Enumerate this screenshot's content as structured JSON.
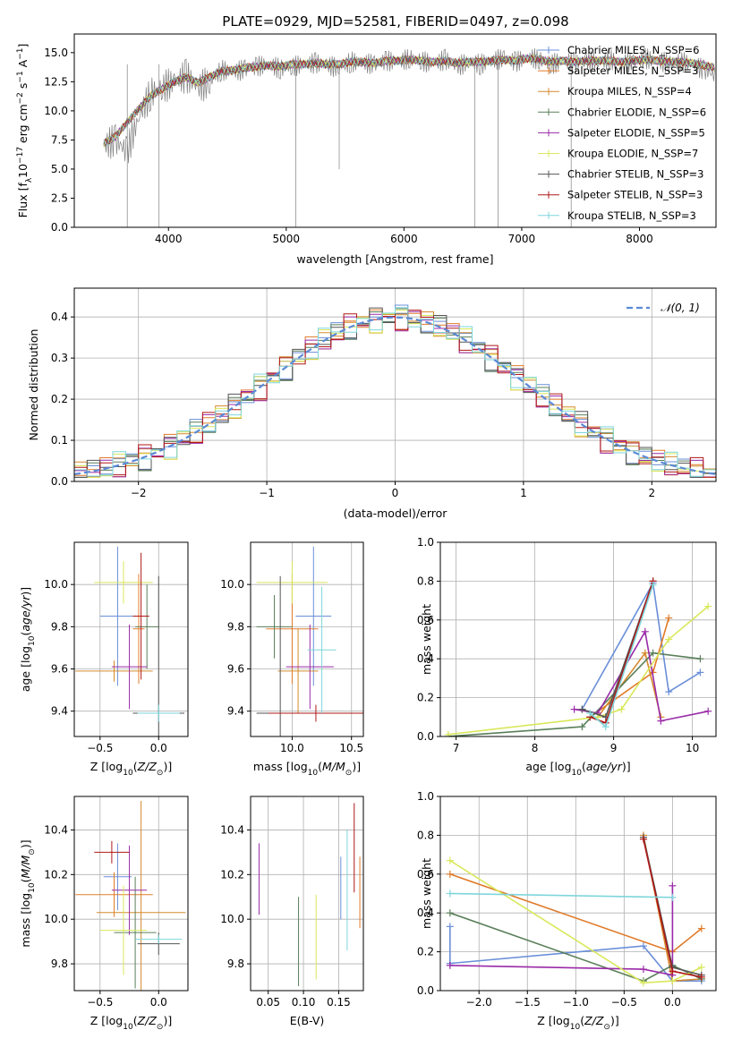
{
  "figure_title": "PLATE=0929, MJD=52581, FIBERID=0497, z=0.098",
  "series_colors": [
    "#6a8fd8",
    "#e07b2a",
    "#d48a2c",
    "#5a7f5a",
    "#9a2aa8",
    "#d9e85a",
    "#555555",
    "#b01818",
    "#7ed6dc"
  ],
  "chart_data": [
    {
      "id": "spectrum",
      "type": "line",
      "title": "PLATE=0929, MJD=52581, FIBERID=0497, z=0.098",
      "xlabel": "wavelength [Angstrom, rest frame]",
      "ylabel": "Flux [f_λ 10^-17 erg cm^-2 s^-1 A^-1]",
      "xlim": [
        3200,
        8650
      ],
      "ylim": [
        0,
        16.6
      ],
      "xticks": [
        4000,
        5000,
        6000,
        7000,
        8000
      ],
      "yticks": [
        0.0,
        2.5,
        5.0,
        7.5,
        10.0,
        12.5,
        15.0
      ],
      "grid": false,
      "legend_position": "right",
      "legend": [
        "Chabrier MILES, N_SSP=6",
        "Salpeter MILES, N_SSP=3",
        "Kroupa MILES, N_SSP=4",
        "Chabrier ELODIE, N_SSP=6",
        "Salpeter ELODIE, N_SSP=5",
        "Kroupa ELODIE, N_SSP=7",
        "Chabrier STELIB, N_SSP=3",
        "Salpeter STELIB, N_SSP=3",
        "Kroupa STELIB, N_SSP=3"
      ],
      "data_series": {
        "name": "data",
        "color": "#808080",
        "x": [
          3450,
          3550,
          3650,
          3750,
          3850,
          3950,
          4050,
          4150,
          4250,
          4350,
          4450,
          4550,
          4650,
          4750,
          4850,
          4950,
          5050,
          5150,
          5250,
          5350,
          5450,
          5550,
          5650,
          5750,
          5850,
          5950,
          6050,
          6150,
          6250,
          6350,
          6450,
          6550,
          6650,
          6750,
          6850,
          6950,
          7050,
          7150,
          7250,
          7350,
          7450,
          7550,
          7650,
          7750,
          7850,
          7950,
          8050,
          8150,
          8250,
          8350,
          8450,
          8550,
          8650
        ],
        "y": [
          7.0,
          7.5,
          6.5,
          9.5,
          11.5,
          12.0,
          12.5,
          13.0,
          12.0,
          12.5,
          13.5,
          13.3,
          13.6,
          13.8,
          14.0,
          13.6,
          13.8,
          14.0,
          14.1,
          13.9,
          13.7,
          14.2,
          14.1,
          14.0,
          14.3,
          14.2,
          14.5,
          14.3,
          14.0,
          14.4,
          13.8,
          14.2,
          14.0,
          14.3,
          14.5,
          14.2,
          14.6,
          14.4,
          14.0,
          14.3,
          14.1,
          14.3,
          14.2,
          14.4,
          14.0,
          14.2,
          14.5,
          14.3,
          14.1,
          14.2,
          14.0,
          13.5,
          13.0
        ]
      },
      "model_series": {
        "x": [
          3450,
          3550,
          3650,
          3750,
          3850,
          3950,
          4050,
          4150,
          4250,
          4350,
          4450,
          4550,
          4650,
          4750,
          4850,
          4950,
          5050,
          5150,
          5250,
          5350,
          5450,
          5550,
          5650,
          5750,
          5850,
          5950,
          6050,
          6150,
          6250,
          6350,
          6450,
          6550,
          6650,
          6750,
          6850,
          6950,
          7050,
          7150,
          7250,
          7350,
          7450,
          7550,
          7650,
          7750,
          7850,
          7950,
          8050,
          8150,
          8250,
          8350,
          8450,
          8550,
          8650
        ],
        "y": [
          7.2,
          7.8,
          9.0,
          10.2,
          11.3,
          11.9,
          12.5,
          12.9,
          12.4,
          12.9,
          13.4,
          13.5,
          13.7,
          13.8,
          13.9,
          13.8,
          14.0,
          14.0,
          14.1,
          14.0,
          14.0,
          14.2,
          14.2,
          14.1,
          14.3,
          14.3,
          14.4,
          14.3,
          14.2,
          14.3,
          14.1,
          14.2,
          14.2,
          14.3,
          14.4,
          14.3,
          14.5,
          14.4,
          14.2,
          14.3,
          14.2,
          14.3,
          14.3,
          14.3,
          14.2,
          14.3,
          14.4,
          14.3,
          14.2,
          14.2,
          14.1,
          13.9,
          13.7
        ]
      }
    },
    {
      "id": "residuals",
      "type": "line",
      "xlabel": "(data-model)/error",
      "ylabel": "Normed distribution",
      "xlim": [
        -2.5,
        2.5
      ],
      "ylim": [
        0,
        0.47
      ],
      "xticks": [
        -2,
        -1,
        0,
        1,
        2
      ],
      "yticks": [
        0.0,
        0.1,
        0.2,
        0.3,
        0.4
      ],
      "grid": true,
      "legend_position": "top-right",
      "legend": [
        "𝒩(0, 1)"
      ],
      "bin_width": 0.1
    },
    {
      "id": "age-vs-Z",
      "type": "scatter",
      "xlabel": "Z [log10(Z/Z⊙)]",
      "ylabel": "age [log10(age/yr)]",
      "xlim": [
        -0.72,
        0.25
      ],
      "ylim": [
        9.28,
        10.2
      ],
      "xticks": [
        -0.5,
        0.0
      ],
      "yticks": [
        9.4,
        9.6,
        9.8,
        10.0
      ],
      "grid": true,
      "points": [
        {
          "x": -0.35,
          "y": 9.85,
          "xerr": 0.15,
          "yerr": 0.33
        },
        {
          "x": -0.17,
          "y": 9.79,
          "xerr": 0.05,
          "yerr": 0.26
        },
        {
          "x": -0.38,
          "y": 9.59,
          "xerr": 0.33,
          "yerr": 0.05
        },
        {
          "x": -0.1,
          "y": 9.8,
          "xerr": 0.1,
          "yerr": 0.2
        },
        {
          "x": -0.25,
          "y": 9.61,
          "xerr": 0.15,
          "yerr": 0.2
        },
        {
          "x": -0.3,
          "y": 10.01,
          "xerr": 0.25,
          "yerr": 0.1
        },
        {
          "x": 0.0,
          "y": 9.39,
          "xerr": 0.22,
          "yerr": 0.65
        },
        {
          "x": -0.15,
          "y": 9.85,
          "xerr": 0.07,
          "yerr": 0.3
        },
        {
          "x": 0.0,
          "y": 9.39,
          "xerr": 0.18,
          "yerr": 0.04
        }
      ]
    },
    {
      "id": "age-vs-mass",
      "type": "scatter",
      "xlabel": "mass [log10(M/M⊙)]",
      "xlim": [
        9.65,
        10.6
      ],
      "ylim": [
        9.28,
        10.2
      ],
      "xticks": [
        10.0,
        10.5
      ],
      "yticks": [
        9.4,
        9.6,
        9.8,
        10.0
      ],
      "grid": true,
      "points": [
        {
          "x": 10.18,
          "y": 9.85,
          "xerr": 0.15,
          "yerr": 0.33
        },
        {
          "x": 10.0,
          "y": 9.79,
          "xerr": 0.22,
          "yerr": 0.26
        },
        {
          "x": 10.05,
          "y": 9.59,
          "xerr": 0.17,
          "yerr": 0.2
        },
        {
          "x": 9.85,
          "y": 9.8,
          "xerr": 0.15,
          "yerr": 0.15
        },
        {
          "x": 10.15,
          "y": 9.61,
          "xerr": 0.2,
          "yerr": 0.2
        },
        {
          "x": 10.0,
          "y": 10.01,
          "xerr": 0.3,
          "yerr": 0.1
        },
        {
          "x": 9.9,
          "y": 9.39,
          "xerr": 0.2,
          "yerr": 0.65
        },
        {
          "x": 10.2,
          "y": 9.39,
          "xerr": 0.4,
          "yerr": 0.04
        },
        {
          "x": 10.25,
          "y": 9.69,
          "xerr": 0.12,
          "yerr": 0.3
        }
      ]
    },
    {
      "id": "weight-vs-age",
      "type": "line",
      "xlabel": "age [log10(age/yr)]",
      "ylabel": "mass weight",
      "xlim": [
        6.8,
        10.3
      ],
      "ylim": [
        0,
        1.0
      ],
      "xticks": [
        7,
        8,
        9,
        10
      ],
      "yticks": [
        0.0,
        0.2,
        0.4,
        0.6,
        0.8,
        1.0
      ],
      "grid": true,
      "series": [
        {
          "x": [
            8.6,
            9.5,
            9.7,
            10.1
          ],
          "y": [
            0.14,
            0.79,
            0.23,
            0.33
          ]
        },
        {
          "x": [
            8.7,
            9.5,
            9.7
          ],
          "y": [
            0.1,
            0.33,
            0.61
          ]
        },
        {
          "x": [
            8.8,
            9.4,
            9.6
          ],
          "y": [
            0.1,
            0.43,
            0.1
          ]
        },
        {
          "x": [
            6.9,
            8.6,
            9.5,
            10.1
          ],
          "y": [
            0.0,
            0.05,
            0.43,
            0.4
          ]
        },
        {
          "x": [
            8.5,
            8.8,
            9.4,
            9.6,
            10.2
          ],
          "y": [
            0.14,
            0.12,
            0.54,
            0.08,
            0.13
          ]
        },
        {
          "x": [
            6.9,
            8.8,
            9.1,
            9.7,
            10.2
          ],
          "y": [
            0.01,
            0.1,
            0.14,
            0.5,
            0.67
          ]
        },
        {
          "x": [
            8.6,
            8.9,
            9.5
          ],
          "y": [
            0.14,
            0.1,
            0.8
          ]
        },
        {
          "x": [
            8.7,
            8.9,
            9.5
          ],
          "y": [
            0.1,
            0.07,
            0.8
          ]
        },
        {
          "x": [
            8.7,
            8.9,
            9.5
          ],
          "y": [
            0.12,
            0.05,
            0.78
          ]
        }
      ]
    },
    {
      "id": "mass-vs-Z",
      "type": "scatter",
      "xlabel": "Z [log10(Z/Z⊙)]",
      "ylabel": "mass [log10(M/M⊙)]",
      "xlim": [
        -0.72,
        0.25
      ],
      "ylim": [
        9.68,
        10.55
      ],
      "xticks": [
        -0.5,
        0.0
      ],
      "yticks": [
        9.8,
        10.0,
        10.2,
        10.4
      ],
      "grid": true,
      "points": [
        {
          "x": -0.35,
          "y": 10.19,
          "xerr": 0.12,
          "yerr": 0.15
        },
        {
          "x": -0.38,
          "y": 10.11,
          "xerr": 0.33,
          "yerr": 0.1
        },
        {
          "x": -0.15,
          "y": 10.03,
          "xerr": 0.38,
          "yerr": 0.5
        },
        {
          "x": -0.2,
          "y": 9.94,
          "xerr": 0.18,
          "yerr": 0.25
        },
        {
          "x": -0.25,
          "y": 10.13,
          "xerr": 0.15,
          "yerr": 0.2
        },
        {
          "x": -0.3,
          "y": 9.95,
          "xerr": 0.2,
          "yerr": 0.2
        },
        {
          "x": 0.0,
          "y": 9.89,
          "xerr": 0.18,
          "yerr": 0.05
        },
        {
          "x": -0.4,
          "y": 10.3,
          "xerr": 0.15,
          "yerr": 0.05
        },
        {
          "x": 0.0,
          "y": 9.91,
          "xerr": 0.2,
          "yerr": 0.02
        }
      ]
    },
    {
      "id": "mass-vs-ebv",
      "type": "scatter",
      "xlabel": "E(B-V)",
      "xlim": [
        0.025,
        0.185
      ],
      "ylim": [
        9.68,
        10.55
      ],
      "xticks": [
        0.05,
        0.1,
        0.15
      ],
      "yticks": [
        9.8,
        10.0,
        10.2,
        10.4
      ],
      "grid": true,
      "points": [
        {
          "x": 0.037,
          "y": 10.18,
          "xerr": 0,
          "yerr": 0.16
        },
        {
          "x": 0.093,
          "y": 9.9,
          "xerr": 0,
          "yerr": 0.2
        },
        {
          "x": 0.118,
          "y": 9.92,
          "xerr": 0,
          "yerr": 0.19
        },
        {
          "x": 0.153,
          "y": 10.14,
          "xerr": 0,
          "yerr": 0.14
        },
        {
          "x": 0.162,
          "y": 10.13,
          "xerr": 0,
          "yerr": 0.27
        },
        {
          "x": 0.172,
          "y": 10.32,
          "xerr": 0,
          "yerr": 0.2
        },
        {
          "x": 0.18,
          "y": 10.12,
          "xerr": 0,
          "yerr": 0.16
        }
      ]
    },
    {
      "id": "weight-vs-Z",
      "type": "line",
      "xlabel": "Z [log10(Z/Z⊙)]",
      "ylabel": "mass weight",
      "xlim": [
        -2.4,
        0.45
      ],
      "ylim": [
        0,
        1.0
      ],
      "xticks": [
        -2.0,
        -1.5,
        -1.0,
        -0.5,
        0.0
      ],
      "yticks": [
        0.0,
        0.2,
        0.4,
        0.6,
        0.8,
        1.0
      ],
      "grid": true,
      "series": [
        {
          "x": [
            -2.3,
            -2.3,
            -0.3,
            0.0,
            0.3
          ],
          "y": [
            0.33,
            0.14,
            0.23,
            0.05,
            0.05
          ]
        },
        {
          "x": [
            -2.3,
            0.0,
            0.3
          ],
          "y": [
            0.6,
            0.2,
            0.32
          ]
        },
        {
          "x": [
            -0.3,
            0.0,
            0.3
          ],
          "y": [
            0.8,
            0.05,
            0.06
          ]
        },
        {
          "x": [
            -2.3,
            -0.3,
            0.0,
            0.3
          ],
          "y": [
            0.4,
            0.05,
            0.13,
            0.06
          ]
        },
        {
          "x": [
            -2.3,
            -0.3,
            0.0,
            0.0
          ],
          "y": [
            0.13,
            0.11,
            0.08,
            0.54
          ]
        },
        {
          "x": [
            -2.3,
            -0.3,
            0.0,
            0.3
          ],
          "y": [
            0.67,
            0.04,
            0.05,
            0.12
          ]
        },
        {
          "x": [
            -0.3,
            0.0,
            0.3
          ],
          "y": [
            0.79,
            0.12,
            0.08
          ]
        },
        {
          "x": [
            -0.3,
            0.0,
            0.3
          ],
          "y": [
            0.78,
            0.1,
            0.07
          ]
        },
        {
          "x": [
            -2.3,
            0.0
          ],
          "y": [
            0.5,
            0.48
          ]
        }
      ]
    }
  ]
}
